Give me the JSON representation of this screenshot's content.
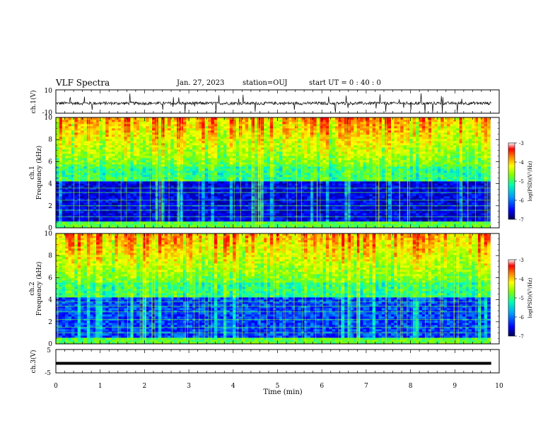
{
  "header": {
    "title": "VLF Spectra",
    "date": "Jan. 27, 2023",
    "station": "station=OUJ",
    "start": "start UT =  0 : 40 : 0"
  },
  "chart_data": [
    {
      "id": "ch1-waveform",
      "type": "line",
      "ylabel": "ch.1(V)",
      "ylim": [
        -10,
        10
      ],
      "y_ticks": [
        "10",
        "-10"
      ],
      "xlim": [
        0,
        10
      ],
      "color": "#000000"
    },
    {
      "id": "ch1-spectrogram",
      "type": "heatmap",
      "ylabel": "ch.1\nFrequency (kHz)",
      "ylabel_line1": "ch.1",
      "ylabel_line2": "Frequency (kHz)",
      "ylim": [
        0,
        10
      ],
      "y_ticks": [
        "0",
        "2",
        "4",
        "6",
        "8",
        "10"
      ],
      "xlim": [
        0,
        9.8
      ],
      "colorbar": {
        "label": "log(PSD)(V²/Hz)",
        "range": [
          -7,
          -3
        ],
        "ticks": [
          "-3",
          "-4",
          "-5",
          "-6",
          "-7"
        ]
      }
    },
    {
      "id": "ch2-spectrogram",
      "type": "heatmap",
      "ylabel": "ch.2\nFrequency (kHz)",
      "ylabel_line1": "ch.2",
      "ylabel_line2": "Frequency (kHz)",
      "ylim": [
        0,
        10
      ],
      "y_ticks": [
        "0",
        "2",
        "4",
        "6",
        "8",
        "10"
      ],
      "xlim": [
        0,
        9.8
      ],
      "colorbar": {
        "label": "log(PSD)(V²/Hz)",
        "range": [
          -7,
          -3
        ],
        "ticks": [
          "-3",
          "-4",
          "-5",
          "-6",
          "-7"
        ]
      }
    },
    {
      "id": "ch3-waveform",
      "type": "line",
      "ylabel": "ch.3(V)",
      "ylim": [
        -5,
        5
      ],
      "y_ticks": [
        "5",
        "-5"
      ],
      "xlim": [
        0,
        10
      ],
      "level": -0.9,
      "color": "#000000"
    }
  ],
  "xaxis": {
    "label": "Time (min)",
    "ticks": [
      "0",
      "1",
      "2",
      "3",
      "4",
      "5",
      "6",
      "7",
      "8",
      "9",
      "10"
    ]
  },
  "colormap": [
    "#000060",
    "#0000ff",
    "#00a0ff",
    "#00ffc0",
    "#80ff00",
    "#ffff00",
    "#ff8000",
    "#ff0000",
    "#ffffff"
  ]
}
